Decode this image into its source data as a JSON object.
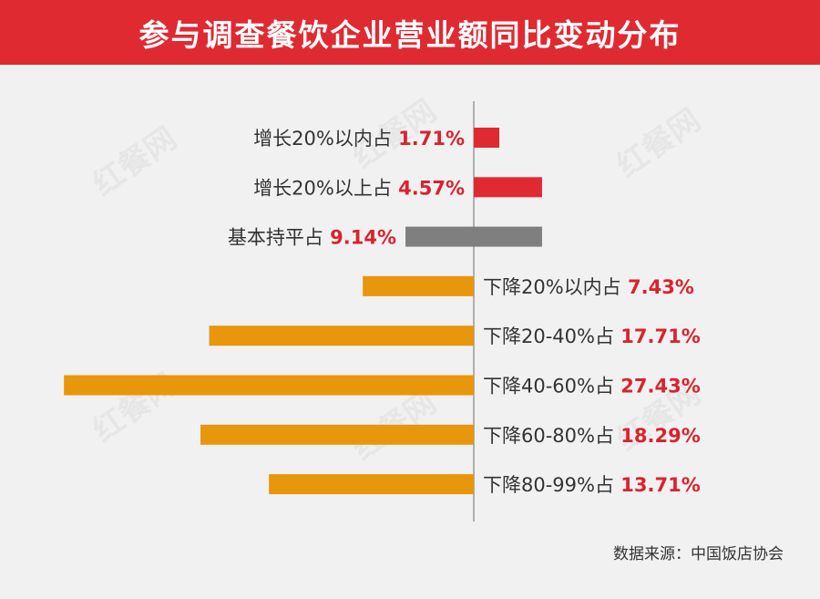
{
  "title": "参与调查餐饮企业营业额同比变动分布",
  "source": "数据来源：中国饭店协会",
  "watermark": "红餐网",
  "colors": {
    "banner": "#e02a32",
    "increase": "#e02a32",
    "flat": "#7f7f7f",
    "decrease": "#e8960b",
    "value_text": "#d9232d",
    "label_text": "#333333",
    "axis": "#999999"
  },
  "chart_data": {
    "type": "bar",
    "orientation": "horizontal-diverging",
    "title": "参与调查餐饮企业营业额同比变动分布",
    "unit": "%",
    "categories": [
      "增长20%以内占",
      "增长20%以上占",
      "基本持平占",
      "下降20%以内占",
      "下降20-40%占",
      "下降40-60%占",
      "下降60-80%占",
      "下降80-99%占"
    ],
    "values": [
      1.71,
      4.57,
      9.14,
      7.43,
      17.71,
      27.43,
      18.29,
      13.71
    ],
    "value_labels": [
      "1.71%",
      "4.57%",
      "9.14%",
      "7.43%",
      "17.71%",
      "27.43%",
      "18.29%",
      "13.71%"
    ],
    "groups": [
      "increase",
      "increase",
      "flat",
      "decrease",
      "decrease",
      "decrease",
      "decrease",
      "decrease"
    ],
    "grid": false,
    "legend": "none"
  }
}
